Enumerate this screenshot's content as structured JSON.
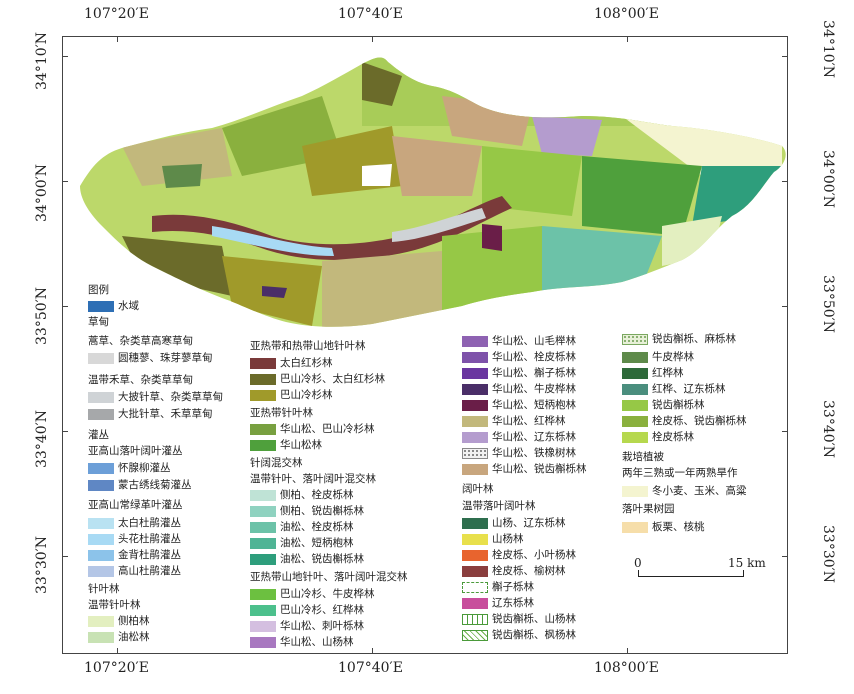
{
  "axes": {
    "top_labels": [
      "107°20′E",
      "107°40′E",
      "108°00′E"
    ],
    "bottom_labels": [
      "107°20′E",
      "107°40′E",
      "108°00′E"
    ],
    "left_labels": [
      "34°10′N",
      "34°00′N",
      "33°50′N",
      "33°40′N",
      "33°30′N"
    ],
    "right_labels": [
      "34°10′N",
      "34°00′N",
      "33°50′N",
      "33°40′N",
      "33°30′N"
    ]
  },
  "legend": {
    "title": "图例",
    "water": {
      "label": "水域",
      "color": "#2e6fb5"
    },
    "col1": {
      "meadow": "草甸",
      "alpine_meadow": "蒿草、杂类草高寒草甸",
      "alpine_items": [
        {
          "label": "圆穗蓼、珠芽蓼草甸",
          "color": "#d8d8d8"
        }
      ],
      "temperate_meadow": "温带禾草、杂类草草甸",
      "temperate_items": [
        {
          "label": "大披针草、杂类草草甸",
          "color": "#cfd3d6"
        },
        {
          "label": "大批针草、禾草草甸",
          "color": "#a6a8aa"
        }
      ],
      "shrub": "灌丛",
      "shrub_sub1": "亚高山落叶阔叶灌丛",
      "shrub_sub1_items": [
        {
          "label": "怀腺柳灌丛",
          "color": "#6c9fd8"
        },
        {
          "label": "蒙古绣线菊灌丛",
          "color": "#5f87c4"
        }
      ],
      "shrub_sub2": "亚高山常绿革叶灌丛",
      "shrub_sub2_items": [
        {
          "label": "太白杜鹃灌丛",
          "color": "#b9e2f2"
        },
        {
          "label": "头花杜鹃灌丛",
          "color": "#a8daf4"
        },
        {
          "label": "金背杜鹃灌丛",
          "color": "#8cc3ea"
        },
        {
          "label": "高山杜鹃灌丛",
          "color": "#b4c6e6"
        }
      ],
      "conifer": "针叶林",
      "conifer_sub": "温带针叶林",
      "conifer_items": [
        {
          "label": "侧柏林",
          "color": "#e3efc0"
        },
        {
          "label": "油松林",
          "color": "#c8e2b4"
        }
      ]
    },
    "col2": {
      "head1": "亚热带和热带山地针叶林",
      "items1": [
        {
          "label": "太白红杉林",
          "color": "#7a3a3a"
        },
        {
          "label": "巴山冷杉、太白红杉林",
          "color": "#6b6b2a"
        },
        {
          "label": "巴山冷杉林",
          "color": "#a09a2a"
        }
      ],
      "head2": "亚热带针叶林",
      "items2": [
        {
          "label": "华山松、巴山冷杉林",
          "color": "#78a040"
        },
        {
          "label": "华山松林",
          "color": "#4fa03c"
        }
      ],
      "head3": "针阔混交林",
      "head3b": "温带针叶、落叶阔叶混交林",
      "items3": [
        {
          "label": "侧柏、栓皮栎林",
          "color": "#bfe3d6"
        },
        {
          "label": "侧柏、锐齿槲栎林",
          "color": "#8fd2c0"
        },
        {
          "label": "油松、栓皮栎林",
          "color": "#6cc2a8"
        },
        {
          "label": "油松、短柄枹林",
          "color": "#4fb495"
        },
        {
          "label": "油松、锐齿槲栎林",
          "color": "#2e9e7c"
        }
      ],
      "head4": "亚热带山地针叶、落叶阔叶混交林",
      "items4": [
        {
          "label": "巴山冷杉、牛皮桦林",
          "color": "#6cc040"
        },
        {
          "label": "巴山冷杉、红桦林",
          "color": "#4cc08c"
        },
        {
          "label": "华山松、刺叶栎林",
          "color": "#d4bfe0"
        },
        {
          "label": "华山松、山杨林",
          "color": "#a878c0"
        }
      ]
    },
    "col3": {
      "items1": [
        {
          "label": "华山松、山毛榉林",
          "color": "#8e62b2"
        },
        {
          "label": "华山松、栓皮栎林",
          "color": "#7e52aa"
        },
        {
          "label": "华山松、槲子栎林",
          "color": "#6a36a0"
        },
        {
          "label": "华山松、牛皮桦林",
          "color": "#4a2e68"
        },
        {
          "label": "华山松、短柄枹林",
          "color": "#6a1e48"
        },
        {
          "label": "华山松、红桦林",
          "color": "#c2b87c"
        },
        {
          "label": "华山松、辽东栎林",
          "color": "#b49cce"
        },
        {
          "label": "华山松、铁橡树林",
          "color": "#f2f2f2",
          "pattern": "dots"
        },
        {
          "label": "华山松、锐齿槲栎林",
          "color": "#c8a67e"
        }
      ],
      "head2": "阔叶林",
      "head2b": "温带落叶阔叶林",
      "items2": [
        {
          "label": "山杨、辽东栎林",
          "color": "#2e6e4e"
        },
        {
          "label": "山杨林",
          "color": "#e8e04c"
        },
        {
          "label": "栓皮栎、小叶杨林",
          "color": "#e8642e"
        },
        {
          "label": "栓皮栎、榆树林",
          "color": "#8a3e3e"
        },
        {
          "label": "槲子栎林",
          "color": "#ffffff",
          "pattern": "dash"
        },
        {
          "label": "辽东栎林",
          "color": "#c84e9c"
        },
        {
          "label": "锐齿槲栎、山杨林",
          "color": "#ffffff",
          "pattern": "ticks"
        },
        {
          "label": "锐齿槲栎、枫杨林",
          "color": "#ffffff",
          "pattern": "grass"
        }
      ]
    },
    "col4": {
      "items1": [
        {
          "label": "锐齿槲栎、麻栎林",
          "color": "#e8f0d8",
          "pattern": "dots2"
        },
        {
          "label": "牛皮桦林",
          "color": "#5e8a4a"
        },
        {
          "label": "红桦林",
          "color": "#2e6a3a"
        },
        {
          "label": "红桦、辽东栎林",
          "color": "#4a8e7e"
        },
        {
          "label": "锐齿槲栎林",
          "color": "#96c846"
        },
        {
          "label": "栓皮栎、锐齿槲栎林",
          "color": "#8ab03e"
        },
        {
          "label": "栓皮栎林",
          "color": "#b6d84e"
        }
      ],
      "head2": "栽培植被",
      "head2b": "两年三熟或一年两熟旱作",
      "items2": [
        {
          "label": "冬小麦、玉米、高粱",
          "color": "#f4f4d0"
        }
      ],
      "head3": "落叶果树园",
      "items3": [
        {
          "label": "板栗、核桃",
          "color": "#f6deaa"
        }
      ]
    }
  },
  "scale": {
    "start": "0",
    "end": "15 km"
  }
}
